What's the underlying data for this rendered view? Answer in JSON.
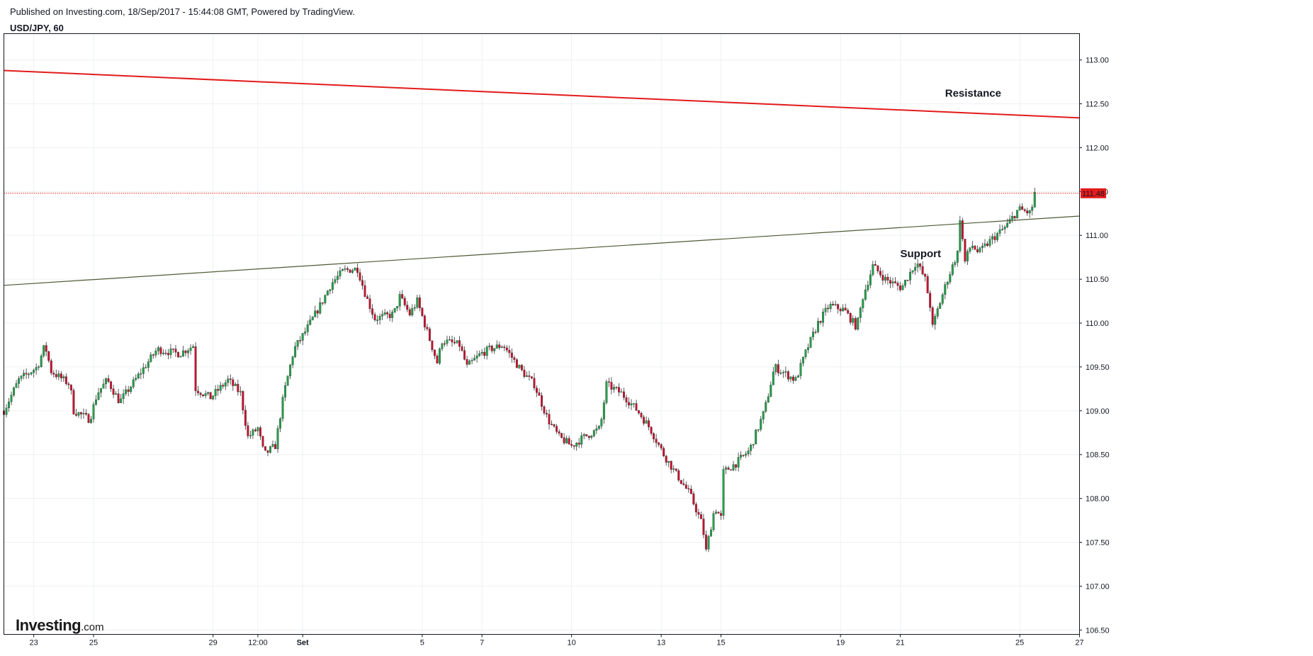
{
  "header": {
    "published": "Published on Investing.com, 18/Sep/2017 - 15:44:08 GMT, Powered by TradingView.",
    "symbol": "USD/JPY, 60"
  },
  "logo": {
    "word": "Investing",
    "tld": ".com"
  },
  "colors": {
    "up": "#22a04b",
    "down": "#c8102e",
    "wick": "#333333",
    "resistance": "#e31b1b",
    "support": "#4d5a36",
    "last_price": "#e31b1b",
    "grid": "#eef0f3",
    "border": "#131722"
  },
  "chart_data": {
    "type": "candlestick",
    "symbol": "USD/JPY",
    "interval": "60",
    "grid": true,
    "ylim": [
      106.45,
      113.3
    ],
    "y_ticks": [
      "106.50",
      "107.00",
      "107.50",
      "108.00",
      "108.50",
      "109.00",
      "109.50",
      "110.00",
      "110.50",
      "111.00",
      "111.50",
      "112.00",
      "112.50",
      "113.00"
    ],
    "x_ticks": [
      "23",
      "25",
      "29",
      "12:00",
      "Set",
      "5",
      "7",
      "10",
      "13",
      "15",
      "19",
      "21",
      "25",
      "27"
    ],
    "last_price": "111.48",
    "annotations": [
      "Resistance",
      "Support"
    ],
    "trendlines": [
      {
        "name": "Resistance",
        "start": [
          "22 Aug",
          112.88
        ],
        "end": [
          "27 Sep",
          112.34
        ]
      },
      {
        "name": "Support",
        "start": [
          "22 Aug",
          110.43
        ],
        "end": [
          "27 Sep",
          111.22
        ]
      }
    ],
    "price_path": [
      [
        "22 Aug",
        109.0
      ],
      [
        "22 Aug 12:00",
        109.35
      ],
      [
        "23 Aug 03:00",
        109.5
      ],
      [
        "23 Aug 09:00",
        109.75
      ],
      [
        "23 Aug 14:00",
        109.45
      ],
      [
        "24 Aug 05:00",
        109.3
      ],
      [
        "24 Aug 08:00",
        109.0
      ],
      [
        "24 Aug 21:00",
        108.9
      ],
      [
        "25 Aug 03:00",
        109.2
      ],
      [
        "25 Aug 11:00",
        109.35
      ],
      [
        "25 Aug 21:00",
        109.1
      ],
      [
        "27 Aug 03:00",
        109.7
      ],
      [
        "27 Aug 21:00",
        109.65
      ],
      [
        "28 Aug 09:00",
        109.75
      ],
      [
        "28 Aug 10:00",
        109.25
      ],
      [
        "28 Aug 22:00",
        109.15
      ],
      [
        "29 Aug 12:00",
        109.35
      ],
      [
        "29 Aug 22:00",
        109.2
      ],
      [
        "30 Aug 04:00",
        108.7
      ],
      [
        "30 Aug 12:00",
        108.8
      ],
      [
        "30 Aug 17:00",
        108.5
      ],
      [
        "31 Aug 02:00",
        108.6
      ],
      [
        "31 Aug 09:00",
        109.2
      ],
      [
        "31 Aug 17:00",
        109.7
      ],
      [
        "1 Sep 02:00",
        109.9
      ],
      [
        "1 Sep 14:00",
        110.2
      ],
      [
        "1 Sep 23:00",
        110.45
      ],
      [
        "2 Sep 09:00",
        110.6
      ],
      [
        "2 Sep 20:00",
        110.62
      ],
      [
        "3 Sep 03:00",
        110.3
      ],
      [
        "3 Sep 10:00",
        110.05
      ],
      [
        "4 Sep 01:00",
        110.1
      ],
      [
        "4 Sep 06:00",
        110.3
      ],
      [
        "4 Sep 14:00",
        110.1
      ],
      [
        "4 Sep 20:00",
        110.25
      ],
      [
        "5 Sep 12:00",
        109.55
      ],
      [
        "5 Sep 16:00",
        109.8
      ],
      [
        "6 Sep 06:00",
        109.75
      ],
      [
        "6 Sep 12:00",
        109.5
      ],
      [
        "6 Sep 23:00",
        109.65
      ],
      [
        "7 Sep 06:00",
        109.7
      ],
      [
        "7 Sep 17:00",
        109.75
      ],
      [
        "8 Sep 08:00",
        109.45
      ],
      [
        "8 Sep 18:00",
        109.3
      ],
      [
        "9 Sep 05:00",
        108.9
      ],
      [
        "9 Sep 14:00",
        108.7
      ],
      [
        "10 Sep 00:00",
        108.6
      ],
      [
        "10 Sep 10:00",
        108.7
      ],
      [
        "10 Sep 23:00",
        108.8
      ],
      [
        "11 Sep 04:00",
        109.3
      ],
      [
        "11 Sep 16:00",
        109.2
      ],
      [
        "12 Sep 05:00",
        109.0
      ],
      [
        "12 Sep 15:00",
        108.8
      ],
      [
        "13 Sep 02:00",
        108.5
      ],
      [
        "13 Sep 11:00",
        108.3
      ],
      [
        "13 Sep 23:00",
        108.05
      ],
      [
        "14 Sep 09:00",
        107.7
      ],
      [
        "14 Sep 12:00",
        107.4
      ],
      [
        "14 Sep 19:00",
        107.9
      ],
      [
        "15 Sep 00:00",
        107.78
      ],
      [
        "15 Sep 02:00",
        108.3
      ],
      [
        "15 Sep 12:00",
        108.4
      ],
      [
        "15 Sep 23:00",
        108.55
      ],
      [
        "16 Sep 11:00",
        109.0
      ],
      [
        "16 Sep 19:00",
        109.5
      ],
      [
        "17 Sep 06:00",
        109.4
      ],
      [
        "17 Sep 12:00",
        109.35
      ],
      [
        "17 Sep 21:00",
        109.7
      ],
      [
        "18 Sep 06:00",
        110.0
      ],
      [
        "18 Sep 15:00",
        110.2
      ],
      [
        "19 Sep 03:00",
        110.15
      ],
      [
        "19 Sep 13:00",
        109.95
      ],
      [
        "19 Sep 18:00",
        110.3
      ],
      [
        "20 Sep 02:00",
        110.65
      ],
      [
        "20 Sep 12:00",
        110.5
      ],
      [
        "21 Sep 01:00",
        110.4
      ],
      [
        "21 Sep 13:00",
        110.7
      ],
      [
        "21 Sep 20:00",
        110.5
      ],
      [
        "22 Sep 00:00",
        110.2
      ],
      [
        "22 Sep 01:00",
        109.9
      ],
      [
        "22 Sep 06:00",
        110.15
      ],
      [
        "22 Sep 14:00",
        110.5
      ],
      [
        "22 Sep 22:00",
        110.8
      ],
      [
        "23 Sep 00:00",
        111.2
      ],
      [
        "23 Sep 04:00",
        110.7
      ],
      [
        "23 Sep 09:00",
        110.9
      ],
      [
        "23 Sep 15:00",
        110.8
      ],
      [
        "24 Sep 01:00",
        110.95
      ],
      [
        "24 Sep 13:00",
        111.1
      ],
      [
        "24 Sep 23:00",
        111.3
      ],
      [
        "25 Sep 09:00",
        111.25
      ],
      [
        "25 Sep 12:00",
        111.48
      ]
    ]
  }
}
